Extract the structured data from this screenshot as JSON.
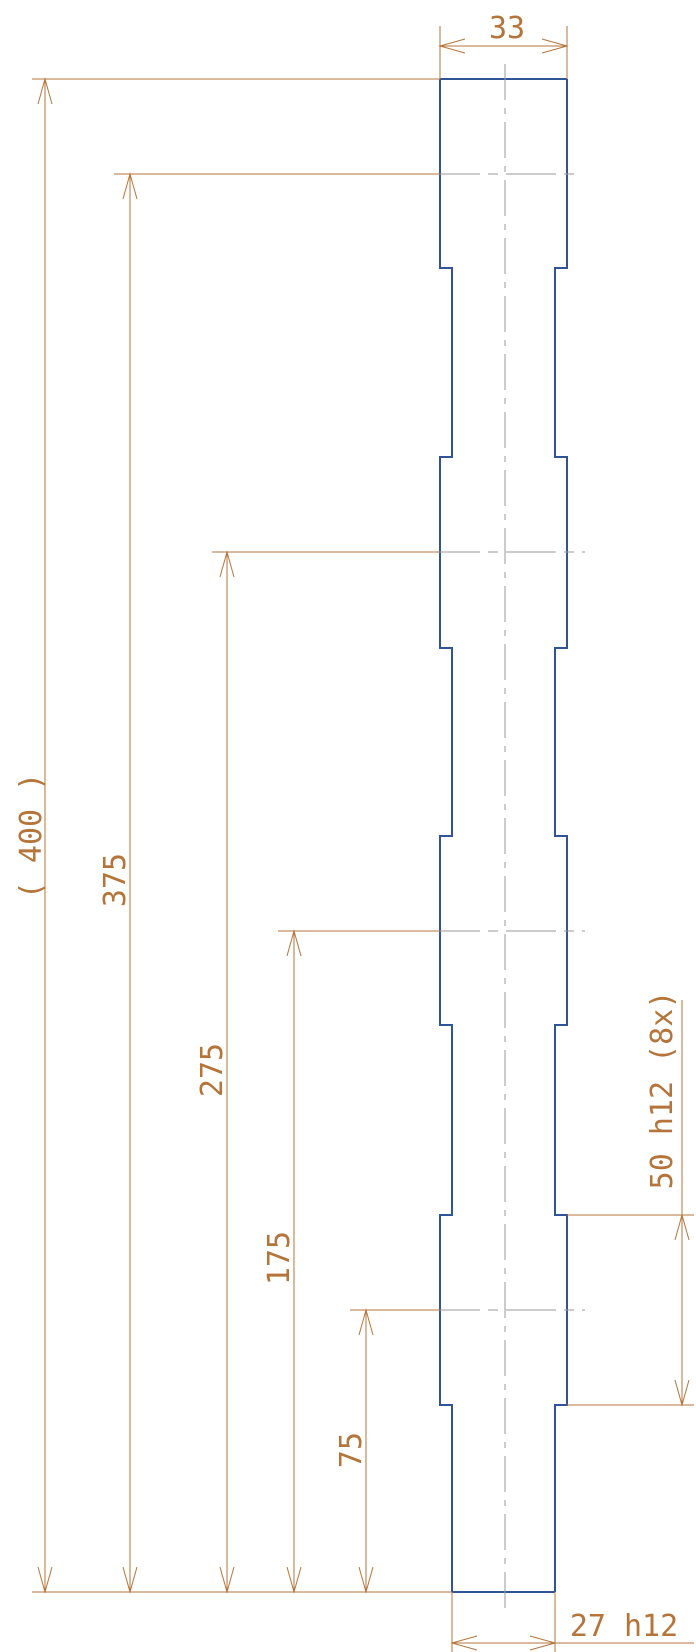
{
  "drawing": {
    "top_width_label": "33",
    "overall_length_label": "( 400 )",
    "dim_375_label": "375",
    "dim_275_label": "275",
    "dim_175_label": "175",
    "dim_75_label": "75",
    "groove_spacing_label": "50 h12 (8x)",
    "bottom_width_label": "27 h12"
  },
  "colors": {
    "dimension": "#b5743a",
    "part_outline": "#2f5597",
    "centerline": "#9a9a9a"
  }
}
